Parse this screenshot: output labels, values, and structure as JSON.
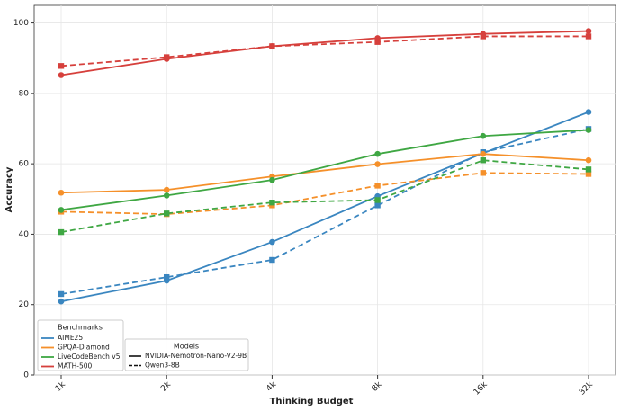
{
  "chart_data": {
    "type": "line",
    "x_label": "Thinking Budget",
    "y_label": "Accuracy",
    "categories": [
      "1k",
      "2k",
      "4k",
      "8k",
      "16k",
      "32k"
    ],
    "ylim": [
      0,
      105
    ],
    "yticks": [
      0,
      20,
      40,
      60,
      80,
      100
    ],
    "grid": true,
    "benchmarks_legend_title": "Benchmarks",
    "models_legend_title": "Models",
    "models": [
      {
        "name": "NVIDIA-Nemotron-Nano-V2-9B",
        "dash": "solid",
        "marker": "circle"
      },
      {
        "name": "Qwen3-8B",
        "dash": "dashed",
        "marker": "square"
      }
    ],
    "series": [
      {
        "name": "AIME25",
        "color": "#3a86c0",
        "values": [
          [
            20.9,
            26.8,
            37.8,
            50.8,
            63.0,
            74.7
          ],
          [
            23.0,
            27.8,
            32.7,
            48.2,
            63.3,
            69.9
          ]
        ]
      },
      {
        "name": "GPQA-Diamond",
        "color": "#f5902a",
        "values": [
          [
            51.8,
            52.6,
            56.4,
            59.9,
            62.8,
            61.0
          ],
          [
            46.4,
            45.7,
            48.2,
            53.8,
            57.4,
            57.1
          ]
        ]
      },
      {
        "name": "LiveCodeBench v5",
        "color": "#3fa743",
        "values": [
          [
            46.9,
            51.0,
            55.4,
            62.8,
            67.9,
            69.6
          ],
          [
            40.6,
            45.9,
            49.0,
            49.7,
            61.0,
            58.4
          ]
        ]
      },
      {
        "name": "MATH-500",
        "color": "#d6403c",
        "values": [
          [
            85.2,
            89.8,
            93.4,
            95.7,
            96.9,
            97.7
          ],
          [
            87.8,
            90.3,
            93.4,
            94.6,
            96.2,
            96.2
          ]
        ]
      }
    ]
  }
}
